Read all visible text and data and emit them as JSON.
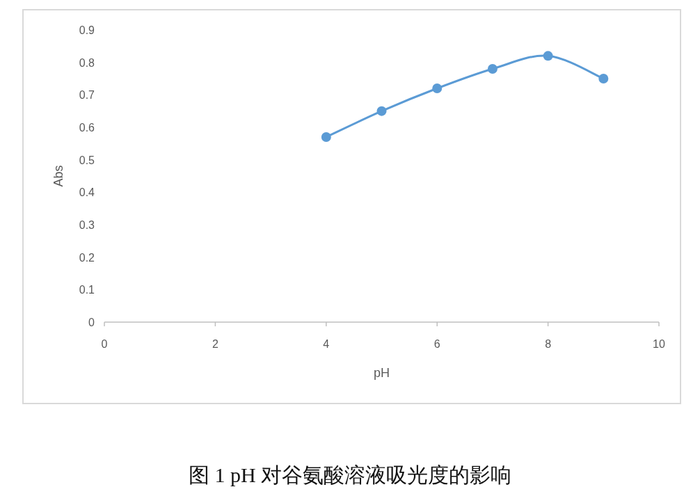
{
  "chart_data": {
    "type": "line",
    "title": "图 1  pH 对谷氨酸溶液吸光度的影响",
    "xlabel": "pH",
    "ylabel": "Abs",
    "x": [
      4,
      5,
      6,
      7,
      8,
      9
    ],
    "series": [
      {
        "color": "#5b9bd5",
        "values": [
          0.57,
          0.65,
          0.72,
          0.78,
          0.82,
          0.75
        ]
      }
    ],
    "xlim": [
      0,
      10
    ],
    "xticks": [
      0,
      2,
      4,
      6,
      8,
      10
    ],
    "ylim": [
      0,
      0.9
    ],
    "yticks": [
      0,
      0.1,
      0.2,
      0.3,
      0.4,
      0.5,
      0.6,
      0.7,
      0.8,
      0.9
    ],
    "marker": "circle",
    "line_style": "solid"
  }
}
